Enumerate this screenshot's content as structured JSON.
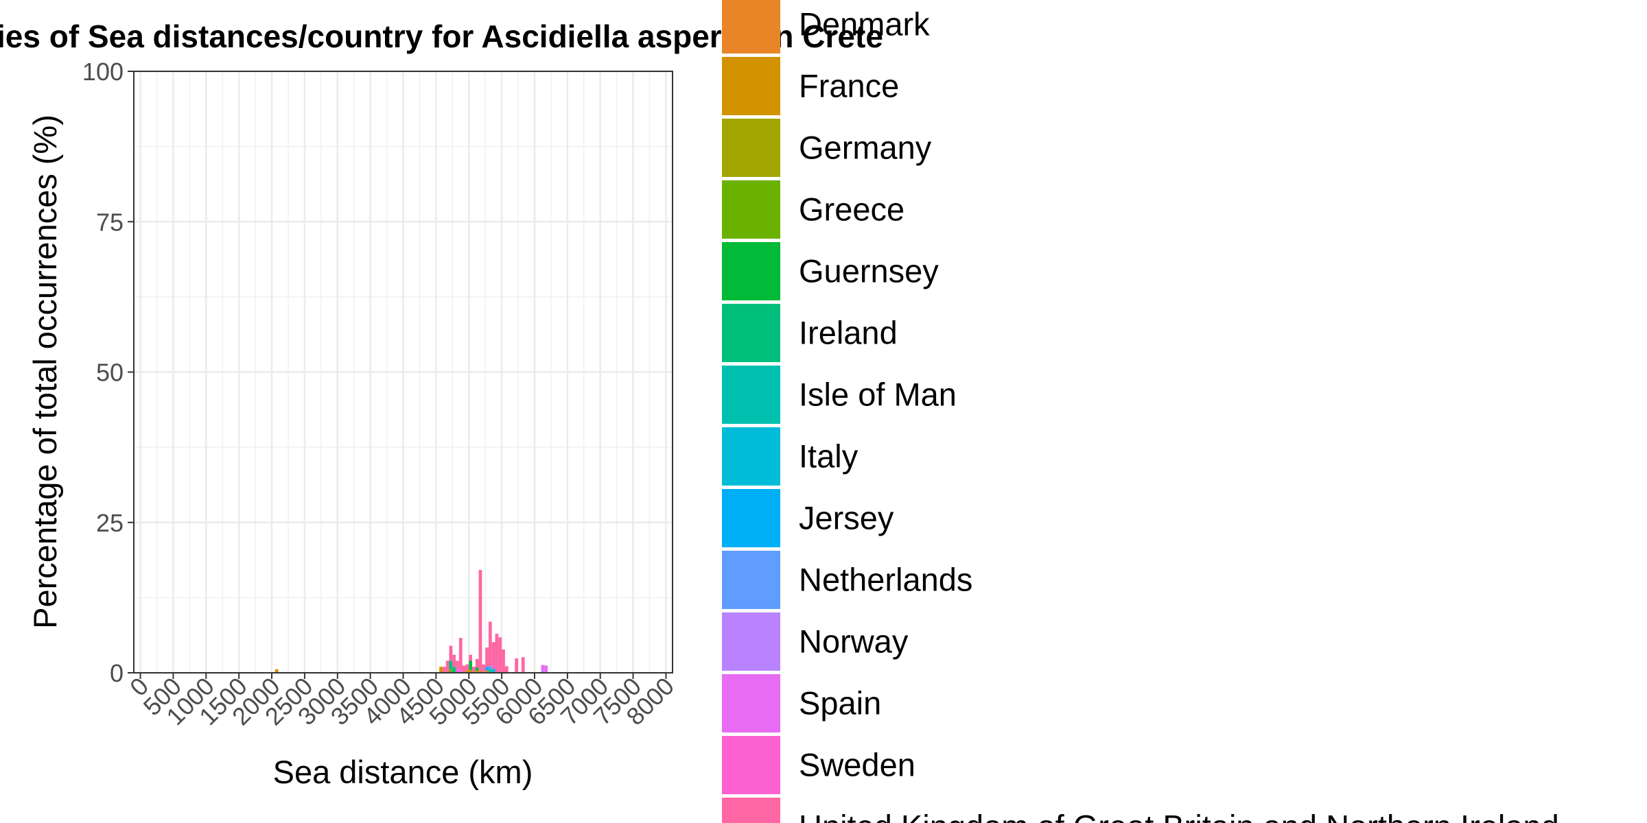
{
  "chart_data": {
    "type": "bar",
    "title": "ies of Sea distances/country for Ascidiella aspersa in Crete",
    "xlabel": "Sea distance (km)",
    "ylabel": "Percentage of total occurrences (%)",
    "xlim": [
      -100,
      8100
    ],
    "ylim": [
      0,
      100
    ],
    "xticks": [
      "0",
      "500",
      "1000",
      "1500",
      "2000",
      "2500",
      "3000",
      "3500",
      "4000",
      "4500",
      "5000",
      "5500",
      "6000",
      "6500",
      "7000",
      "7500",
      "8000"
    ],
    "yticks": [
      "0",
      "25",
      "50",
      "75",
      "100"
    ],
    "grid": true,
    "stacked": true,
    "bin_width": 50,
    "legend_position": "right",
    "series": [
      {
        "name": "Denmark",
        "color": "#E88526",
        "values": [
          [
            5275,
            0.4
          ]
        ]
      },
      {
        "name": "France",
        "color": "#D39200",
        "values": [
          [
            2075,
            0.6
          ],
          [
            4575,
            1.0
          ],
          [
            4975,
            0.4
          ],
          [
            5175,
            0.3
          ]
        ]
      },
      {
        "name": "Germany",
        "color": "#A3A500",
        "values": [
          [
            5025,
            0.5
          ],
          [
            5125,
            0.4
          ]
        ]
      },
      {
        "name": "Greece",
        "color": "#6BB100",
        "values": [
          [
            4725,
            0.6
          ]
        ]
      },
      {
        "name": "Guernsey",
        "color": "#00BA38",
        "values": [
          [
            5025,
            1.5
          ],
          [
            5125,
            0.5
          ]
        ]
      },
      {
        "name": "Ireland",
        "color": "#00BF7D",
        "values": [
          [
            4725,
            1.4
          ],
          [
            4775,
            1.0
          ]
        ]
      },
      {
        "name": "Isle of Man",
        "color": "#00C0AF",
        "values": [
          [
            5325,
            0.6
          ]
        ]
      },
      {
        "name": "Italy",
        "color": "#00BCD8",
        "values": [
          [
            5375,
            0.7
          ]
        ]
      },
      {
        "name": "Jersey",
        "color": "#00B0F6",
        "values": [
          [
            5275,
            0.6
          ]
        ]
      },
      {
        "name": "Netherlands",
        "color": "#619CFF",
        "values": [
          [
            5325,
            0.5
          ]
        ]
      },
      {
        "name": "Norway",
        "color": "#B983FF",
        "values": [
          [
            6125,
            0.5
          ]
        ]
      },
      {
        "name": "Spain",
        "color": "#E76BF3",
        "values": [
          [
            4875,
            0.5
          ],
          [
            6125,
            0.8
          ],
          [
            6175,
            1.2
          ]
        ]
      },
      {
        "name": "Sweden",
        "color": "#FD61D1",
        "values": [
          [
            4825,
            0.5
          ],
          [
            5375,
            0.4
          ]
        ]
      },
      {
        "name": "United Kingdom of Great Britain and Northern Ireland",
        "color": "#FF67A4",
        "values": [
          [
            4625,
            1.0
          ],
          [
            4675,
            2.0
          ],
          [
            4725,
            2.5
          ],
          [
            4775,
            2.0
          ],
          [
            4825,
            1.5
          ],
          [
            4875,
            5.3
          ],
          [
            4925,
            1.2
          ],
          [
            4975,
            1.0
          ],
          [
            5025,
            1.0
          ],
          [
            5075,
            1.0
          ],
          [
            5125,
            1.4
          ],
          [
            5175,
            16.8
          ],
          [
            5225,
            1.4
          ],
          [
            5275,
            3.2
          ],
          [
            5325,
            7.4
          ],
          [
            5375,
            4.0
          ],
          [
            5425,
            6.5
          ],
          [
            5475,
            5.9
          ],
          [
            5525,
            3.9
          ],
          [
            5575,
            1.1
          ],
          [
            5725,
            2.4
          ],
          [
            5825,
            2.6
          ]
        ]
      }
    ]
  }
}
